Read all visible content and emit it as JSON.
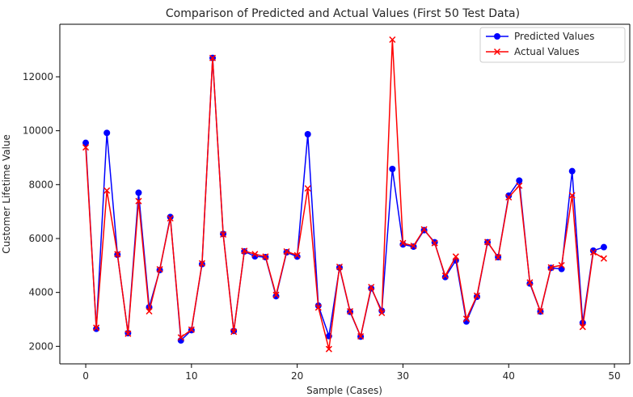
{
  "chart_data": {
    "type": "line",
    "title": "Comparison of Predicted and Actual Values (First 50 Test Data)",
    "xlabel": "Sample (Cases)",
    "ylabel": "Customer Lifetime Value",
    "xlim": [
      -2.45,
      51.45
    ],
    "ylim": [
      1350,
      13950
    ],
    "xticks": [
      0,
      10,
      20,
      30,
      40,
      50
    ],
    "yticks": [
      2000,
      4000,
      6000,
      8000,
      10000,
      12000
    ],
    "grid": false,
    "legend_position": "top-right",
    "x": [
      0,
      1,
      2,
      3,
      4,
      5,
      6,
      7,
      8,
      9,
      10,
      11,
      12,
      13,
      14,
      15,
      16,
      17,
      18,
      19,
      20,
      21,
      22,
      23,
      24,
      25,
      26,
      27,
      28,
      29,
      30,
      31,
      32,
      33,
      34,
      35,
      36,
      37,
      38,
      39,
      40,
      41,
      42,
      43,
      44,
      45,
      46,
      47,
      48,
      49
    ],
    "series": [
      {
        "name": "Predicted Values",
        "color": "#0000ff",
        "marker": "circle",
        "values": [
          9550,
          2650,
          9920,
          5400,
          2490,
          7700,
          3450,
          4830,
          6800,
          2220,
          2600,
          5050,
          12700,
          6170,
          2570,
          5520,
          5340,
          5310,
          3860,
          5490,
          5330,
          9870,
          3510,
          2380,
          4920,
          3280,
          2360,
          4150,
          3320,
          8580,
          5780,
          5700,
          6310,
          5860,
          4570,
          5190,
          2920,
          3840,
          5860,
          5310,
          7590,
          8150,
          4330,
          3290,
          4910,
          4870,
          8500,
          2870,
          5550,
          5680
        ]
      },
      {
        "name": "Actual Values",
        "color": "#ff0000",
        "marker": "x",
        "values": [
          9380,
          2690,
          7780,
          5420,
          2470,
          7390,
          3300,
          4860,
          6750,
          2330,
          2620,
          5080,
          12700,
          6150,
          2540,
          5540,
          5420,
          5330,
          3910,
          5520,
          5380,
          7860,
          3440,
          1900,
          4950,
          3300,
          2370,
          4200,
          3240,
          13380,
          5830,
          5730,
          6340,
          5830,
          4620,
          5330,
          3020,
          3880,
          5870,
          5300,
          7530,
          7960,
          4370,
          3300,
          4930,
          5010,
          7600,
          2720,
          5490,
          5260
        ]
      }
    ]
  }
}
